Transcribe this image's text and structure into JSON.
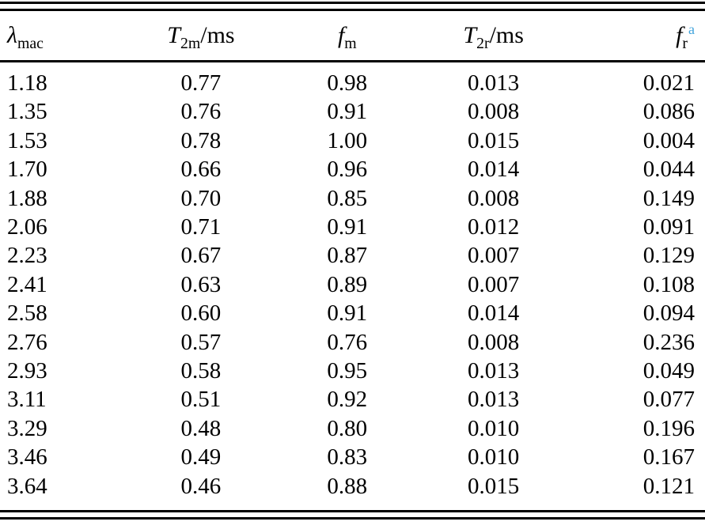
{
  "colors": {
    "text": "#000000",
    "rule": "#000000",
    "footnote_link": "#42a4dc"
  },
  "table": {
    "columns": [
      {
        "id": "lambda-mac",
        "label_base": "λ",
        "label_sub": "mac",
        "label_suffix": "",
        "label_sup": "",
        "align": "left"
      },
      {
        "id": "t2m-ms",
        "label_base": "T",
        "label_sub": "2m",
        "label_suffix": "/ms",
        "label_sup": "",
        "align": "center"
      },
      {
        "id": "fm",
        "label_base": "f",
        "label_sub": "m",
        "label_suffix": "",
        "label_sup": "",
        "align": "center"
      },
      {
        "id": "t2r-ms",
        "label_base": "T",
        "label_sub": "2r",
        "label_suffix": "/ms",
        "label_sup": "",
        "align": "center"
      },
      {
        "id": "fr",
        "label_base": "f",
        "label_sub": "r",
        "label_suffix": "",
        "label_sup": "a",
        "align": "right"
      }
    ],
    "rows": [
      [
        "1.18",
        "0.77",
        "0.98",
        "0.013",
        "0.021"
      ],
      [
        "1.35",
        "0.76",
        "0.91",
        "0.008",
        "0.086"
      ],
      [
        "1.53",
        "0.78",
        "1.00",
        "0.015",
        "0.004"
      ],
      [
        "1.70",
        "0.66",
        "0.96",
        "0.014",
        "0.044"
      ],
      [
        "1.88",
        "0.70",
        "0.85",
        "0.008",
        "0.149"
      ],
      [
        "2.06",
        "0.71",
        "0.91",
        "0.012",
        "0.091"
      ],
      [
        "2.23",
        "0.67",
        "0.87",
        "0.007",
        "0.129"
      ],
      [
        "2.41",
        "0.63",
        "0.89",
        "0.007",
        "0.108"
      ],
      [
        "2.58",
        "0.60",
        "0.91",
        "0.014",
        "0.094"
      ],
      [
        "2.76",
        "0.57",
        "0.76",
        "0.008",
        "0.236"
      ],
      [
        "2.93",
        "0.58",
        "0.95",
        "0.013",
        "0.049"
      ],
      [
        "3.11",
        "0.51",
        "0.92",
        "0.013",
        "0.077"
      ],
      [
        "3.29",
        "0.48",
        "0.80",
        "0.010",
        "0.196"
      ],
      [
        "3.46",
        "0.49",
        "0.83",
        "0.010",
        "0.167"
      ],
      [
        "3.64",
        "0.46",
        "0.88",
        "0.015",
        "0.121"
      ]
    ]
  }
}
